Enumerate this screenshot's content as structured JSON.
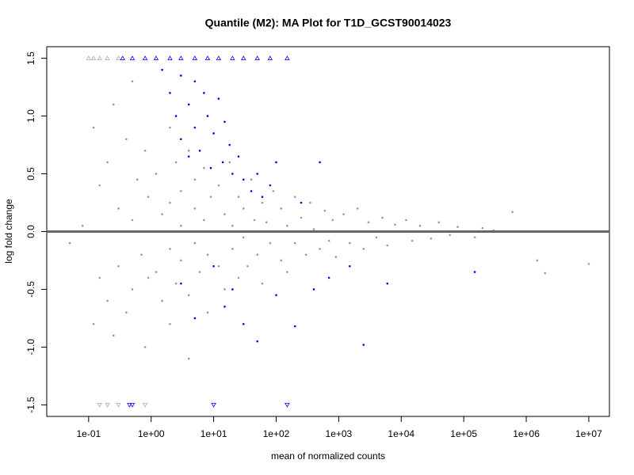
{
  "chart_data": {
    "type": "scatter",
    "title": "Quantile (M2): MA Plot for T1D_GCST90014023",
    "xlabel": "mean of normalized counts",
    "ylabel": "log fold change",
    "xscale": "log",
    "xlim": [
      0.0214,
      21400000
    ],
    "ylim": [
      -1.6,
      1.6
    ],
    "xticks": [
      {
        "value": 0.1,
        "label": "1e-01"
      },
      {
        "value": 1,
        "label": "1e+00"
      },
      {
        "value": 10,
        "label": "1e+01"
      },
      {
        "value": 100,
        "label": "1e+02"
      },
      {
        "value": 1000,
        "label": "1e+03"
      },
      {
        "value": 10000,
        "label": "1e+04"
      },
      {
        "value": 100000,
        "label": "1e+05"
      },
      {
        "value": 1000000,
        "label": "1e+06"
      },
      {
        "value": 10000000,
        "label": "1e+07"
      }
    ],
    "yticks": [
      -1.5,
      {
        "value": -1,
        "label": "-1.0"
      },
      -0.5,
      {
        "value": 0,
        "label": "0.0"
      },
      0.5,
      {
        "value": 1,
        "label": "1.0"
      },
      1.5
    ],
    "hline": 0,
    "hline_color": "#666666",
    "series": [
      {
        "color": "#999999",
        "marker": "dot",
        "x": [
          0.05,
          0.08,
          0.12,
          0.12,
          0.15,
          0.15,
          0.2,
          0.2,
          0.25,
          0.25,
          0.3,
          0.3,
          0.4,
          0.4,
          0.5,
          0.5,
          0.5,
          0.6,
          0.7,
          0.8,
          0.8,
          0.9,
          0.9,
          1.2,
          1.2,
          1.5,
          1.5,
          2,
          2,
          2,
          2,
          2.5,
          2.5,
          3,
          3,
          3,
          4,
          4,
          4,
          5,
          5,
          5,
          6,
          7,
          7,
          8,
          8,
          9,
          12,
          12,
          15,
          15,
          18,
          20,
          20,
          25,
          25,
          30,
          30,
          35,
          40,
          45,
          50,
          60,
          60,
          70,
          80,
          90,
          120,
          120,
          150,
          150,
          200,
          200,
          250,
          300,
          350,
          400,
          500,
          600,
          700,
          800,
          900,
          1200,
          1500,
          2000,
          2500,
          3000,
          4000,
          5000,
          6000,
          8000,
          12000,
          15000,
          20000,
          30000,
          40000,
          60000,
          80000,
          150000,
          200000,
          300000,
          600000,
          1500000,
          2000000,
          10000000
        ],
        "values": [
          -0.1,
          0.05,
          0.9,
          -0.8,
          0.4,
          -0.4,
          0.6,
          -0.6,
          1.1,
          -0.9,
          0.2,
          -0.3,
          0.8,
          -0.7,
          1.3,
          0.1,
          -0.5,
          0.45,
          -0.2,
          0.7,
          -1.0,
          0.3,
          -0.4,
          0.5,
          -0.35,
          0.15,
          -0.6,
          0.9,
          0.25,
          -0.15,
          -0.8,
          0.6,
          -0.45,
          0.35,
          -0.25,
          0.05,
          0.7,
          -0.55,
          -1.1,
          0.2,
          -0.1,
          0.45,
          -0.35,
          0.55,
          0.1,
          -0.2,
          -0.7,
          0.3,
          0.4,
          -0.3,
          0.15,
          -0.5,
          0.6,
          0.05,
          -0.15,
          0.3,
          -0.4,
          0.2,
          -0.05,
          -0.3,
          0.45,
          0.1,
          -0.2,
          0.25,
          -0.45,
          0.08,
          -0.1,
          0.35,
          0.2,
          -0.25,
          0.05,
          -0.35,
          0.3,
          -0.1,
          0.12,
          -0.2,
          0.25,
          0.02,
          -0.15,
          0.18,
          -0.08,
          0.1,
          -0.22,
          0.15,
          -0.1,
          0.2,
          -0.15,
          0.08,
          -0.05,
          0.12,
          -0.12,
          0.06,
          0.1,
          -0.08,
          0.05,
          -0.06,
          0.08,
          -0.03,
          0.04,
          -0.05,
          0.03,
          0.01,
          0.17,
          -0.25,
          -0.36,
          -0.28
        ]
      },
      {
        "color": "#0000ff",
        "marker": "dot",
        "x": [
          1.5,
          2,
          2.5,
          3,
          3,
          4,
          4,
          5,
          5,
          6,
          7,
          8,
          9,
          10,
          12,
          14,
          15,
          18,
          20,
          25,
          30,
          40,
          50,
          60,
          80,
          100,
          3,
          5,
          10,
          15,
          20,
          30,
          50,
          100,
          200,
          400,
          700,
          1500,
          2500,
          6000,
          150000,
          250,
          500
        ],
        "values": [
          1.4,
          1.2,
          1.0,
          1.35,
          0.8,
          1.1,
          0.65,
          1.3,
          0.9,
          0.7,
          1.2,
          1.0,
          0.55,
          0.85,
          1.15,
          0.6,
          0.95,
          0.75,
          0.5,
          0.65,
          0.45,
          0.35,
          0.5,
          0.3,
          0.4,
          0.6,
          -0.45,
          -0.75,
          -0.3,
          -0.65,
          -0.5,
          -0.8,
          -0.95,
          -0.55,
          -0.82,
          -0.5,
          -0.4,
          -0.3,
          -0.98,
          -0.45,
          -0.35,
          0.25,
          0.6
        ]
      },
      {
        "color": "#aaaaaa",
        "marker": "triangle-up",
        "x": [
          0.1,
          0.12,
          0.15,
          0.2,
          0.3
        ],
        "values": [
          1.5,
          1.5,
          1.5,
          1.5,
          1.5
        ]
      },
      {
        "color": "#0000ff",
        "marker": "triangle-up",
        "x": [
          0.35,
          0.5,
          0.8,
          1.2,
          2,
          3,
          5,
          8,
          12,
          20,
          30,
          50,
          80,
          150
        ],
        "values": [
          1.5,
          1.5,
          1.5,
          1.5,
          1.5,
          1.5,
          1.5,
          1.5,
          1.5,
          1.5,
          1.5,
          1.5,
          1.5,
          1.5
        ]
      },
      {
        "color": "#aaaaaa",
        "marker": "triangle-down",
        "x": [
          0.15,
          0.2,
          0.3,
          0.8
        ],
        "values": [
          -1.5,
          -1.5,
          -1.5,
          -1.5
        ]
      },
      {
        "color": "#0000ff",
        "marker": "triangle-down",
        "x": [
          0.45,
          0.5,
          10,
          150
        ],
        "values": [
          -1.5,
          -1.5,
          -1.5,
          -1.5
        ]
      }
    ]
  }
}
